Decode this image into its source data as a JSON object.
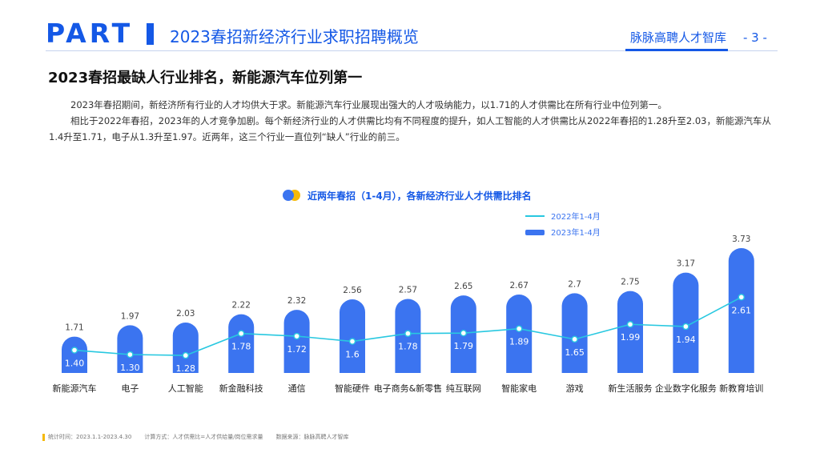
{
  "header": {
    "part_label": "PART",
    "section_title": "2023春招新经济行业求职招聘概览",
    "brand": "脉脉高聘人才智库",
    "page_number": "- 3 -",
    "accent_color": "#1458e6"
  },
  "headline": "2023春招最缺人行业排名，新能源汽车位列第一",
  "paragraphs": [
    "2023年春招期间，新经济所有行业的人才均供大于求。新能源汽车行业展现出强大的人才吸纳能力，以1.71的人才供需比在所有行业中位列第一。",
    "相比于2022年春招，2023年的人才竞争加剧。每个新经济行业的人才供需比均有不同程度的提升，如人工智能的人才供需比从2022年春招的1.28升至2.03，新能源汽车从1.4升至1.71，电子从1.3升至1.97。近两年，这三个行业一直位列“缺人”行业的前三。"
  ],
  "chart_data": {
    "type": "bar",
    "title": "近两年春招（1-4月），各新经济行业人才供需比排名",
    "categories": [
      "新能源汽车",
      "电子",
      "人工智能",
      "新金融科技",
      "通信",
      "智能硬件",
      "电子商务&新零售",
      "纯互联网",
      "智能家电",
      "游戏",
      "新生活服务",
      "企业数字化服务",
      "新教育培训"
    ],
    "series": [
      {
        "name": "2023年1-4月",
        "type": "bar",
        "color": "#3b74f0",
        "values": [
          1.71,
          1.97,
          2.03,
          2.22,
          2.32,
          2.56,
          2.57,
          2.65,
          2.67,
          2.7,
          2.75,
          3.17,
          3.73
        ],
        "labels": [
          "1.71",
          "1.97",
          "2.03",
          "2.22",
          "2.32",
          "2.56",
          "2.57",
          "2.65",
          "2.67",
          "2.7",
          "2.75",
          "3.17",
          "3.73"
        ]
      },
      {
        "name": "2022年1-4月",
        "type": "line",
        "color": "#28c8e0",
        "values": [
          1.4,
          1.3,
          1.28,
          1.78,
          1.72,
          1.6,
          1.78,
          1.79,
          1.89,
          1.65,
          1.99,
          1.94,
          2.61
        ],
        "labels": [
          "1.40",
          "1.30",
          "1.28",
          "1.78",
          "1.72",
          "1.6",
          "1.78",
          "1.79",
          "1.89",
          "1.65",
          "1.99",
          "1.94",
          "2.61"
        ]
      }
    ],
    "legend": [
      "2022年1-4月",
      "2023年1-4月"
    ],
    "legend_position": "top-right",
    "ylim": [
      0.88,
      3.73
    ],
    "grid": false
  },
  "footer": {
    "stat_time": "统计时间：2023.1.1-2023.4.30",
    "method": "计算方式：人才供需比=人才供给量/岗位需求量",
    "source": "数据来源：脉脉高聘人才智库"
  }
}
